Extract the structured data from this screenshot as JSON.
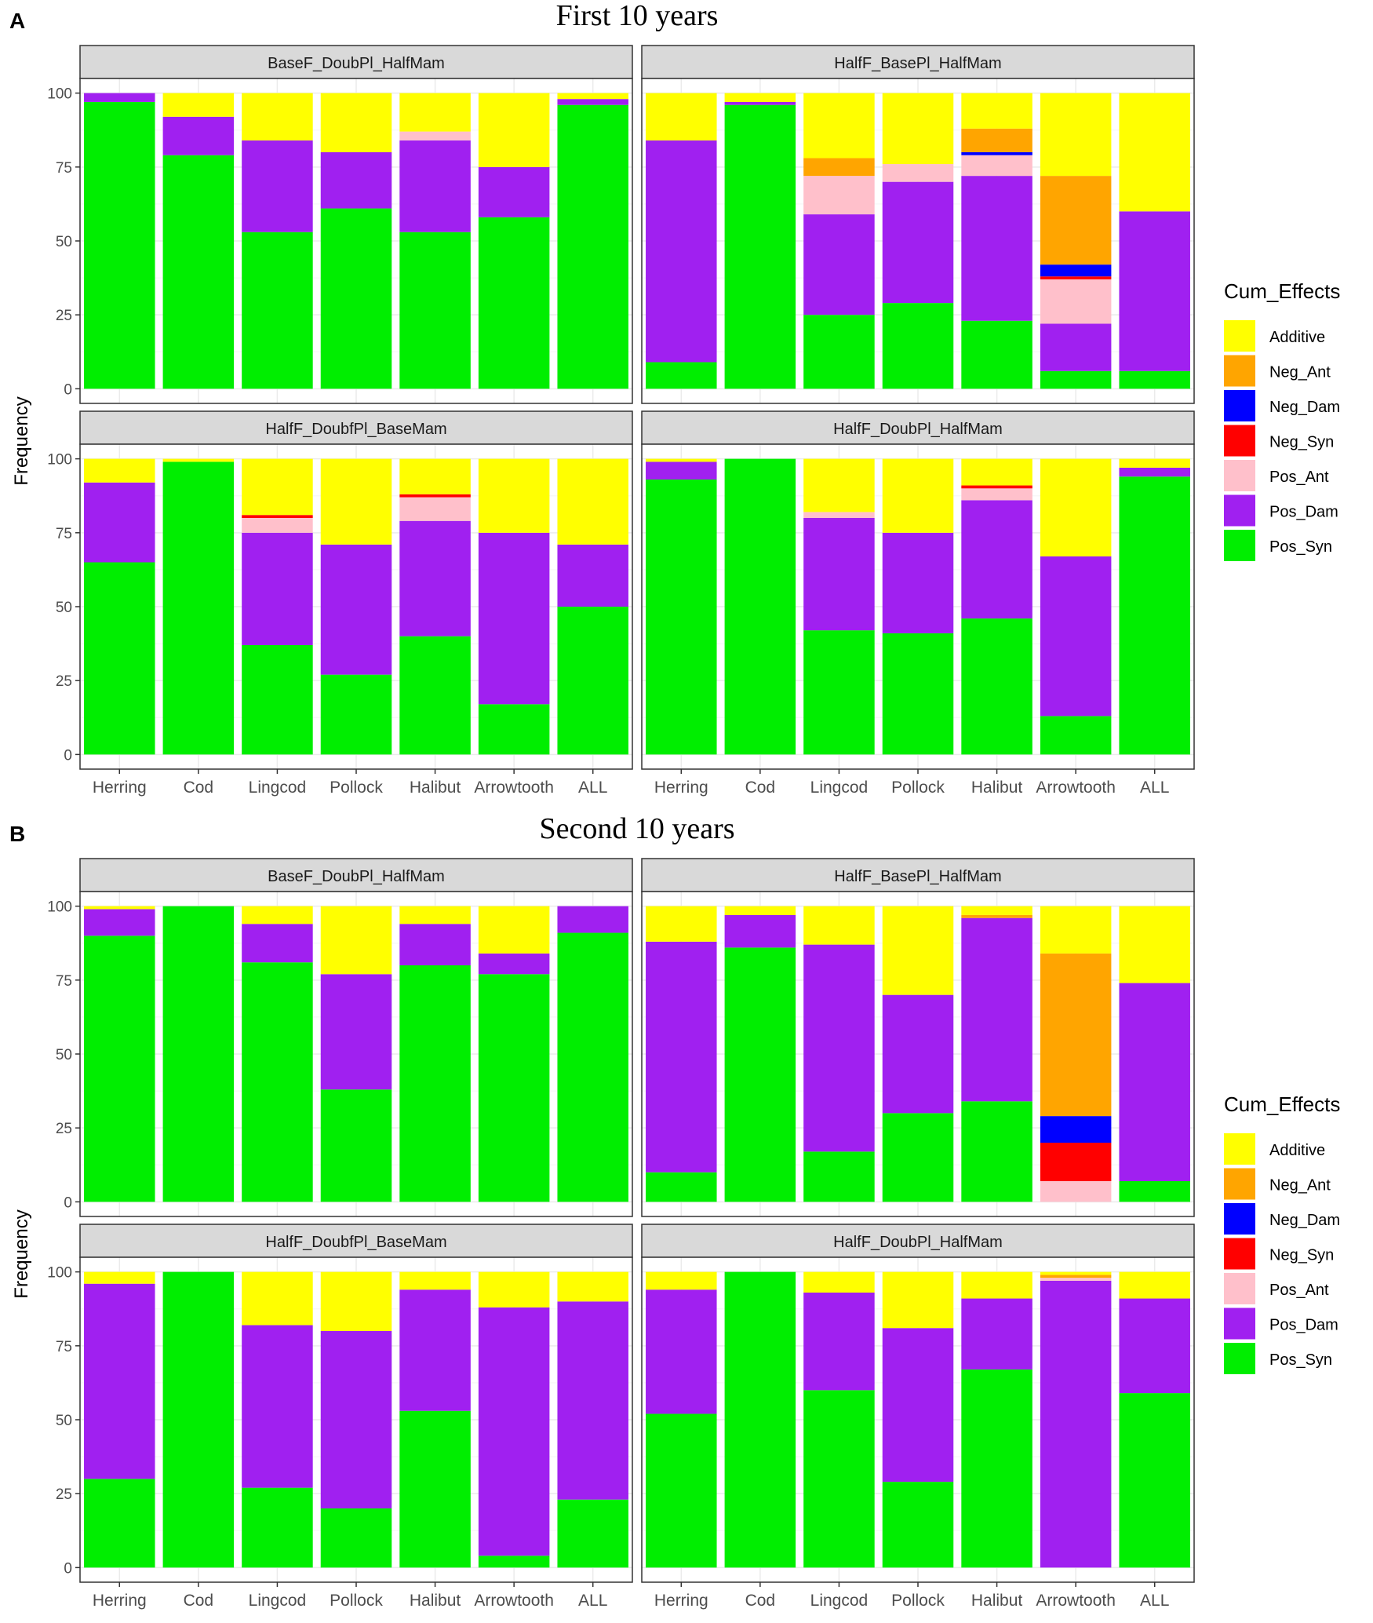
{
  "figure": {
    "y_axis_label": "Frequency",
    "panels": [
      {
        "letter": "A",
        "title": "First 10 years"
      },
      {
        "letter": "B",
        "title": "Second 10 years"
      }
    ]
  },
  "chart_data": {
    "type": "bar",
    "stacked": true,
    "categories": [
      "Herring",
      "Cod",
      "Lingcod",
      "Pollock",
      "Halibut",
      "Arrowtooth",
      "ALL"
    ],
    "yticks": [
      0,
      25,
      50,
      75,
      100
    ],
    "ylim": [
      0,
      100
    ],
    "ylabel": "Frequency",
    "legend": {
      "title": "Cum_Effects",
      "position": "right",
      "entries": [
        {
          "key": "Additive",
          "color": "#ffff00"
        },
        {
          "key": "Neg_Ant",
          "color": "#ffa500"
        },
        {
          "key": "Neg_Dam",
          "color": "#0000ff"
        },
        {
          "key": "Neg_Syn",
          "color": "#ff0000"
        },
        {
          "key": "Pos_Ant",
          "color": "#ffc0cb"
        },
        {
          "key": "Pos_Dam",
          "color": "#a020f0"
        },
        {
          "key": "Pos_Syn",
          "color": "#00ee00"
        }
      ]
    },
    "stack_order": [
      "Pos_Syn",
      "Pos_Dam",
      "Pos_Ant",
      "Neg_Syn",
      "Neg_Dam",
      "Neg_Ant",
      "Additive"
    ],
    "panels": [
      {
        "title": "First 10 years",
        "facets": [
          {
            "name": "BaseF_DoubPl_HalfMam",
            "series": {
              "Pos_Syn": [
                97,
                79,
                53,
                61,
                53,
                58,
                96
              ],
              "Pos_Dam": [
                3,
                13,
                31,
                19,
                31,
                17,
                2
              ],
              "Pos_Ant": [
                0,
                0,
                0,
                0,
                3,
                0,
                0
              ],
              "Neg_Syn": [
                0,
                0,
                0,
                0,
                0,
                0,
                0
              ],
              "Neg_Dam": [
                0,
                0,
                0,
                0,
                0,
                0,
                0
              ],
              "Neg_Ant": [
                0,
                0,
                0,
                0,
                0,
                0,
                0
              ],
              "Additive": [
                0,
                8,
                16,
                20,
                13,
                25,
                2
              ]
            }
          },
          {
            "name": "HalfF_BasePl_HalfMam",
            "series": {
              "Pos_Syn": [
                9,
                96,
                25,
                29,
                23,
                6,
                6
              ],
              "Pos_Dam": [
                75,
                1,
                34,
                41,
                49,
                16,
                54
              ],
              "Pos_Ant": [
                0,
                0,
                13,
                6,
                7,
                15,
                0
              ],
              "Neg_Syn": [
                0,
                0,
                0,
                0,
                0,
                1,
                0
              ],
              "Neg_Dam": [
                0,
                0,
                0,
                0,
                1,
                4,
                0
              ],
              "Neg_Ant": [
                0,
                0,
                6,
                0,
                8,
                30,
                0
              ],
              "Additive": [
                16,
                3,
                22,
                24,
                12,
                28,
                40
              ]
            }
          },
          {
            "name": "HalfF_DoubfPl_BaseMam",
            "series": {
              "Pos_Syn": [
                65,
                99,
                37,
                27,
                40,
                17,
                50
              ],
              "Pos_Dam": [
                27,
                0,
                38,
                44,
                39,
                58,
                21
              ],
              "Pos_Ant": [
                0,
                0,
                5,
                0,
                8,
                0,
                0
              ],
              "Neg_Syn": [
                0,
                0,
                1,
                0,
                1,
                0,
                0
              ],
              "Neg_Dam": [
                0,
                0,
                0,
                0,
                0,
                0,
                0
              ],
              "Neg_Ant": [
                0,
                0,
                0,
                0,
                0,
                0,
                0
              ],
              "Additive": [
                8,
                1,
                19,
                29,
                12,
                25,
                29
              ]
            }
          },
          {
            "name": "HalfF_DoubPl_HalfMam",
            "series": {
              "Pos_Syn": [
                93,
                100,
                42,
                41,
                46,
                13,
                94
              ],
              "Pos_Dam": [
                6,
                0,
                38,
                34,
                40,
                54,
                3
              ],
              "Pos_Ant": [
                0,
                0,
                2,
                0,
                4,
                0,
                0
              ],
              "Neg_Syn": [
                0,
                0,
                0,
                0,
                1,
                0,
                0
              ],
              "Neg_Dam": [
                0,
                0,
                0,
                0,
                0,
                0,
                0
              ],
              "Neg_Ant": [
                0,
                0,
                0,
                0,
                0,
                0,
                0
              ],
              "Additive": [
                1,
                0,
                18,
                25,
                9,
                33,
                3
              ]
            }
          }
        ]
      },
      {
        "title": "Second 10 years",
        "facets": [
          {
            "name": "BaseF_DoubPl_HalfMam",
            "series": {
              "Pos_Syn": [
                90,
                100,
                81,
                38,
                80,
                77,
                91
              ],
              "Pos_Dam": [
                9,
                0,
                13,
                39,
                14,
                7,
                9
              ],
              "Pos_Ant": [
                0,
                0,
                0,
                0,
                0,
                0,
                0
              ],
              "Neg_Syn": [
                0,
                0,
                0,
                0,
                0,
                0,
                0
              ],
              "Neg_Dam": [
                0,
                0,
                0,
                0,
                0,
                0,
                0
              ],
              "Neg_Ant": [
                0,
                0,
                0,
                0,
                0,
                0,
                0
              ],
              "Additive": [
                1,
                0,
                6,
                23,
                6,
                16,
                0
              ]
            }
          },
          {
            "name": "HalfF_BasePl_HalfMam",
            "series": {
              "Pos_Syn": [
                10,
                86,
                17,
                30,
                34,
                0,
                7
              ],
              "Pos_Dam": [
                78,
                11,
                70,
                40,
                62,
                0,
                67
              ],
              "Pos_Ant": [
                0,
                0,
                0,
                0,
                0,
                7,
                0
              ],
              "Neg_Syn": [
                0,
                0,
                0,
                0,
                0,
                13,
                0
              ],
              "Neg_Dam": [
                0,
                0,
                0,
                0,
                0,
                9,
                0
              ],
              "Neg_Ant": [
                0,
                0,
                0,
                0,
                1,
                55,
                0
              ],
              "Additive": [
                12,
                3,
                13,
                30,
                3,
                16,
                26
              ]
            }
          },
          {
            "name": "HalfF_DoubfPl_BaseMam",
            "series": {
              "Pos_Syn": [
                30,
                100,
                27,
                20,
                53,
                4,
                23
              ],
              "Pos_Dam": [
                66,
                0,
                55,
                60,
                41,
                84,
                67
              ],
              "Pos_Ant": [
                0,
                0,
                0,
                0,
                0,
                0,
                0
              ],
              "Neg_Syn": [
                0,
                0,
                0,
                0,
                0,
                0,
                0
              ],
              "Neg_Dam": [
                0,
                0,
                0,
                0,
                0,
                0,
                0
              ],
              "Neg_Ant": [
                0,
                0,
                0,
                0,
                0,
                0,
                0
              ],
              "Additive": [
                4,
                0,
                18,
                20,
                6,
                12,
                10
              ]
            }
          },
          {
            "name": "HalfF_DoubPl_HalfMam",
            "series": {
              "Pos_Syn": [
                52,
                100,
                60,
                29,
                67,
                0,
                59
              ],
              "Pos_Dam": [
                42,
                0,
                33,
                52,
                24,
                97,
                32
              ],
              "Pos_Ant": [
                0,
                0,
                0,
                0,
                0,
                1,
                0
              ],
              "Neg_Syn": [
                0,
                0,
                0,
                0,
                0,
                0,
                0
              ],
              "Neg_Dam": [
                0,
                0,
                0,
                0,
                0,
                0,
                0
              ],
              "Neg_Ant": [
                0,
                0,
                0,
                0,
                0,
                1,
                0
              ],
              "Additive": [
                6,
                0,
                7,
                19,
                9,
                1,
                9
              ]
            }
          }
        ]
      }
    ]
  }
}
